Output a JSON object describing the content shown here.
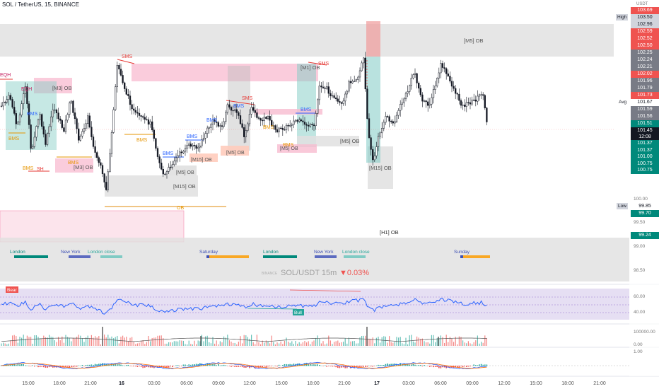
{
  "header": {
    "title": "SOL / TetherUS, 15, BINANCE"
  },
  "currency": "USDT",
  "price_axis": {
    "labels": [
      "103.69",
      "103.50",
      "102.96",
      "102.59",
      "102.52",
      "102.50",
      "102.25",
      "102.24",
      "102.21",
      "102.02",
      "101.96",
      "101.79",
      "101.73",
      "101.67",
      "101.59",
      "101.56",
      "101.51",
      "101.45",
      "12:08",
      "101.37",
      "101.37",
      "101.00",
      "100.75",
      "100.75",
      "100.00",
      "99.85",
      "99.70",
      "99.50",
      "99.24",
      "99.00",
      "98.50"
    ],
    "tags": {
      "high": "High",
      "avg": "Avg",
      "low": "Low"
    },
    "rsi_levels": [
      "60.00",
      "40.00"
    ],
    "volume_level": "100000.00",
    "macd_levels": [
      "0.00",
      "1.00"
    ]
  },
  "time_axis": [
    "15:00",
    "18:00",
    "21:00",
    "16",
    "03:00",
    "06:00",
    "09:00",
    "12:00",
    "15:00",
    "18:00",
    "21:00",
    "17",
    "03:00",
    "06:00",
    "09:00",
    "12:00",
    "15:00",
    "18:00",
    "21:00"
  ],
  "watermark": {
    "exchange": "BINANCE",
    "symbol": "SOL/USDT 15m",
    "change": "▼0.03%"
  },
  "annotations": {
    "ob_m5_top": "[M5] OB",
    "ob_m1": "[M1] OB",
    "ob_m3_left": "[M3] OB",
    "ob_m3_low": "[M3] OB",
    "ob_m5_mid": "[M5] OB",
    "ob_m15_left": "[M15] OB",
    "ob_m15_mid": "[M15] OB",
    "ob_m5_a": "[M5] OB",
    "ob_m5_b": "[M5] OB",
    "ob_m5_c": "[M5] OB",
    "ob_m15_right": "[M15] OB",
    "ob_h1": "[H1] OB",
    "ob_plain": "OB",
    "eqh": "EQH",
    "sh": "SH",
    "sms_1": "SMS",
    "sms_2": "SMS",
    "sms_3": "SMS",
    "bms": "BMS"
  },
  "sessions": [
    "London",
    "New York",
    "London close",
    "Saturday",
    "London",
    "New York",
    "London close",
    "Sunday"
  ],
  "rsi": {
    "bear": "Bear",
    "bull": "Bull"
  },
  "colors": {
    "up": "#26a69a",
    "down": "#ef5350",
    "candle": "#131722",
    "rsi_line": "#2962ff",
    "rsi_band": "#7e57c2"
  }
}
